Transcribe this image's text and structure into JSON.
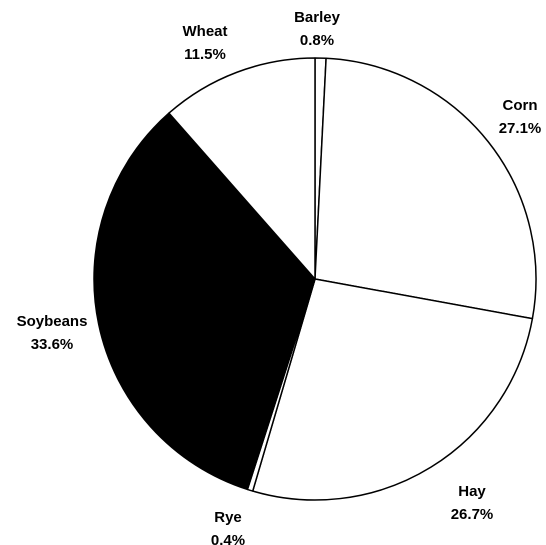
{
  "chart_data": {
    "type": "pie",
    "categories": [
      "Barley",
      "Corn",
      "Hay",
      "Rye",
      "Soybeans",
      "Wheat"
    ],
    "values": [
      0.8,
      27.1,
      26.7,
      0.4,
      33.6,
      11.5
    ],
    "value_labels": [
      "0.8%",
      "27.1%",
      "26.7%",
      "0.4%",
      "33.6%",
      "11.5%"
    ],
    "colors": [
      "#ffffff",
      "#ffffff",
      "#ffffff",
      "#ffffff",
      "#000000",
      "#ffffff"
    ]
  }
}
